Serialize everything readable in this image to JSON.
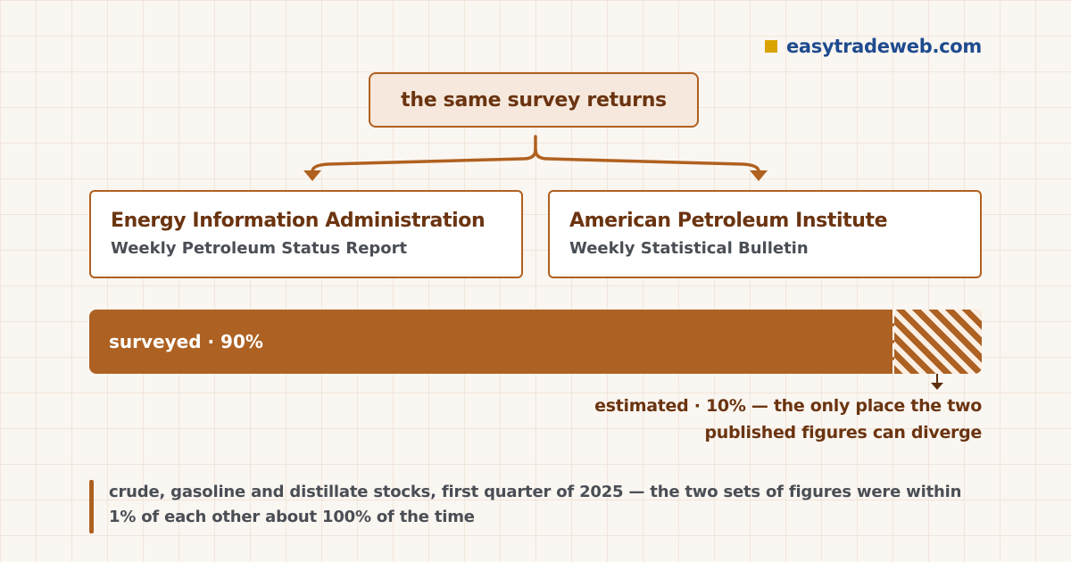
{
  "brand": {
    "text": "easytradeweb.com",
    "icon": "square-bullet-icon",
    "icon_color": "#d9a400",
    "text_color": "#1f4b8f"
  },
  "root": {
    "label": "the same survey returns"
  },
  "sources": [
    {
      "title": "Energy Information Administration",
      "subtitle": "Weekly Petroleum Status Report"
    },
    {
      "title": "American Petroleum Institute",
      "subtitle": "Weekly Statistical Bulletin"
    }
  ],
  "split": {
    "surveyed": {
      "label": "surveyed · 90%",
      "fraction": 0.9
    },
    "estimated": {
      "label": "estimated · 10% — the only place the two published figures can diverge",
      "fraction": 0.1
    }
  },
  "note": {
    "text": "crude, gasoline and distillate stocks, first quarter of 2025 — the two sets of figures were within 1% of each other about 100% of the time"
  },
  "colors": {
    "accent": "#ad6122",
    "dark_brown": "#6b3410",
    "root_fill": "#f6e8dc",
    "text_gray": "#4a4e55"
  }
}
